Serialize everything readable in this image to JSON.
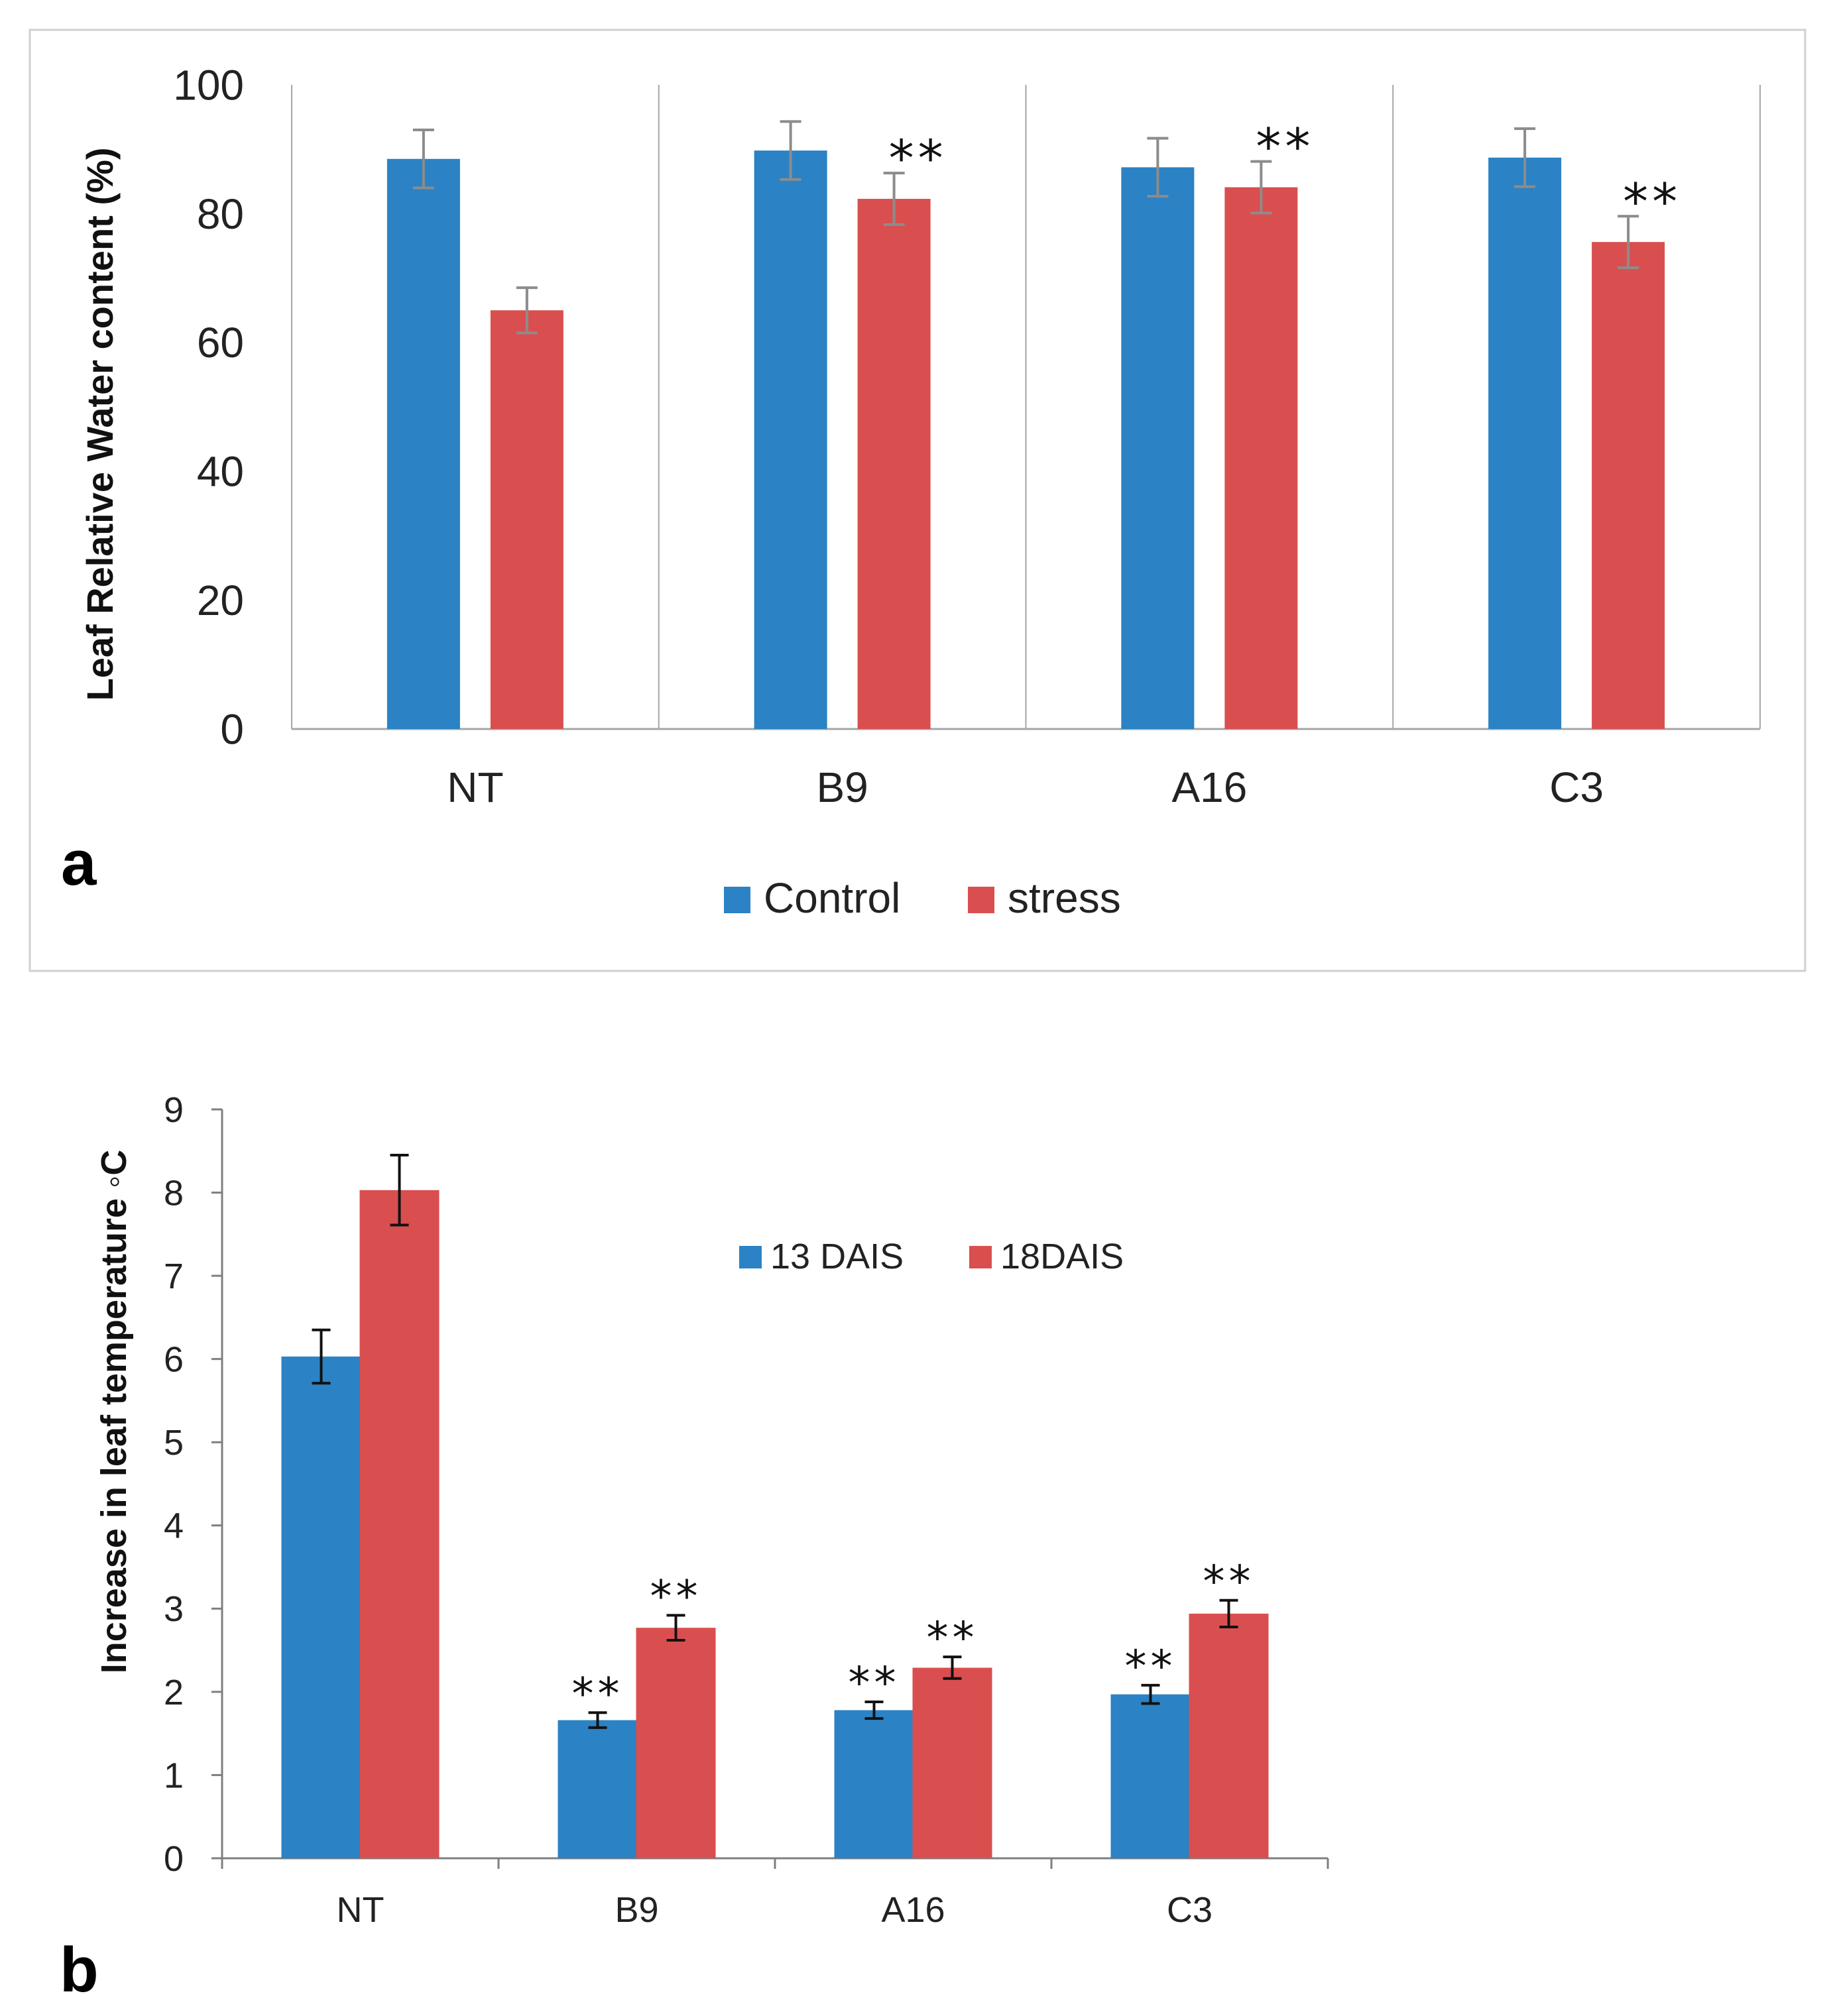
{
  "colors": {
    "series_a": "#2b82c4",
    "series_b": "#d94f4f",
    "errbar_a": "#8c8c8c",
    "errbar_b": "#111111",
    "axis": "#a6a6a6",
    "axis_b": "#7f7f7f",
    "frame": "#d0d0d0"
  },
  "chart_data": [
    {
      "panel": "a",
      "type": "bar",
      "ylabel": "Leaf Relative Water content (%)",
      "ylim": [
        0,
        100
      ],
      "yticks": [
        0,
        20,
        40,
        60,
        80,
        100
      ],
      "categories": [
        "NT",
        "B9",
        "A16",
        "C3"
      ],
      "series": [
        {
          "name": "Control",
          "values": [
            88.5,
            89.8,
            87.2,
            88.7
          ],
          "errors": [
            4.5,
            4.5,
            4.5,
            4.5
          ]
        },
        {
          "name": "stress",
          "values": [
            65.0,
            82.3,
            84.1,
            75.6
          ],
          "errors": [
            3.5,
            4.0,
            4.0,
            4.0
          ]
        }
      ],
      "significance": [
        {
          "category": "B9",
          "series": "stress",
          "label": "**"
        },
        {
          "category": "A16",
          "series": "stress",
          "label": "**"
        },
        {
          "category": "C3",
          "series": "stress",
          "label": "**"
        }
      ],
      "legend_position": "bottom",
      "gridlines": false
    },
    {
      "panel": "b",
      "type": "bar",
      "ylabel": "Increase in leaf temperature ◦C",
      "ylim": [
        0,
        9
      ],
      "yticks": [
        0,
        1,
        2,
        3,
        4,
        5,
        6,
        7,
        8,
        9
      ],
      "categories": [
        "NT",
        "B9",
        "A16",
        "C3"
      ],
      "series": [
        {
          "name": "13 DAIS",
          "values": [
            6.03,
            1.66,
            1.78,
            1.97
          ],
          "errors": [
            0.32,
            0.09,
            0.1,
            0.11
          ]
        },
        {
          "name": "18DAIS",
          "values": [
            8.03,
            2.77,
            2.29,
            2.94
          ],
          "errors": [
            0.42,
            0.15,
            0.13,
            0.16
          ]
        }
      ],
      "significance": [
        {
          "category": "B9",
          "series": "13 DAIS",
          "label": "**"
        },
        {
          "category": "B9",
          "series": "18DAIS",
          "label": "**"
        },
        {
          "category": "A16",
          "series": "13 DAIS",
          "label": "**"
        },
        {
          "category": "A16",
          "series": "18DAIS",
          "label": "**"
        },
        {
          "category": "C3",
          "series": "13 DAIS",
          "label": "**"
        },
        {
          "category": "C3",
          "series": "18DAIS",
          "label": "**"
        }
      ],
      "legend_position": "top-center",
      "gridlines": false
    }
  ]
}
